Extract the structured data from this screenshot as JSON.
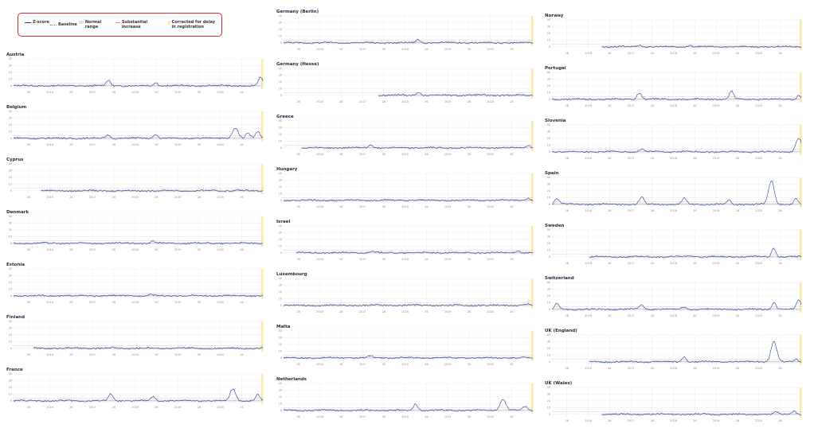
{
  "legend": {
    "zscore": "Z-score",
    "baseline": "Baseline",
    "normal": "Normal range",
    "substantial": "Substantial increase",
    "corrected": "Corrected for delay in registration"
  },
  "colors": {
    "line": "#1d3c9c",
    "normal": "#e2e2e2",
    "substantial": "#e88888",
    "corrected": "#fbeaa0",
    "grid": "#e6e6e6"
  },
  "chart_data": {
    "type": "line",
    "y_ticks": [
      0,
      10,
      20,
      30,
      40
    ],
    "ylim": [
      -5,
      40
    ],
    "x_ticks": [
      "26",
      "2016",
      "26",
      "2017",
      "26",
      "2018",
      "26",
      "2019",
      "26",
      "2020",
      "26"
    ],
    "legend_position": "top-left",
    "grid": true,
    "panels": [
      {
        "title": "Austria",
        "start": 0.0,
        "peaks": [
          [
            0.38,
            8
          ],
          [
            0.57,
            5
          ],
          [
            0.99,
            12
          ]
        ]
      },
      {
        "title": "Belgium",
        "start": 0.0,
        "peaks": [
          [
            0.38,
            5
          ],
          [
            0.57,
            6
          ],
          [
            0.89,
            16
          ],
          [
            0.94,
            8
          ],
          [
            0.98,
            10
          ]
        ]
      },
      {
        "title": "Cyprus",
        "start": 0.11,
        "peaks": [
          [
            0.9,
            1
          ]
        ]
      },
      {
        "title": "Denmark",
        "start": 0.0,
        "peaks": [
          [
            0.56,
            3
          ]
        ]
      },
      {
        "title": "Estonia",
        "start": 0.0,
        "peaks": [
          [
            0.55,
            2
          ]
        ]
      },
      {
        "title": "Finland",
        "start": 0.08,
        "peaks": [
          [
            0.4,
            1
          ]
        ]
      },
      {
        "title": "France",
        "start": 0.0,
        "peaks": [
          [
            0.39,
            10
          ],
          [
            0.56,
            6
          ],
          [
            0.88,
            18
          ],
          [
            0.98,
            9
          ]
        ]
      },
      {
        "title": "Germany (Berlin)",
        "start": 0.0,
        "peaks": [
          [
            0.54,
            5
          ]
        ]
      },
      {
        "title": "Germany (Hesse)",
        "start": 0.38,
        "peaks": [
          [
            0.54,
            5
          ]
        ]
      },
      {
        "title": "Greece",
        "start": 0.07,
        "peaks": [
          [
            0.35,
            5
          ],
          [
            0.98,
            4
          ]
        ]
      },
      {
        "title": "Hungary",
        "start": 0.0,
        "peaks": [
          [
            0.98,
            3
          ]
        ]
      },
      {
        "title": "Israel",
        "start": 0.05,
        "peaks": [
          [
            0.35,
            3
          ],
          [
            0.94,
            4
          ]
        ]
      },
      {
        "title": "Luxembourg",
        "start": 0.0,
        "peaks": [
          [
            0.98,
            2
          ]
        ]
      },
      {
        "title": "Malta",
        "start": 0.0,
        "peaks": [
          [
            0.35,
            3
          ]
        ]
      },
      {
        "title": "Netherlands",
        "start": 0.0,
        "peaks": [
          [
            0.53,
            10
          ],
          [
            0.88,
            17
          ],
          [
            0.97,
            6
          ]
        ]
      },
      {
        "title": "Norway",
        "start": 0.2,
        "peaks": [
          [
            0.35,
            3
          ],
          [
            0.55,
            2
          ]
        ]
      },
      {
        "title": "Portugal",
        "start": 0.0,
        "peaks": [
          [
            0.35,
            10
          ],
          [
            0.72,
            12
          ],
          [
            0.99,
            6
          ]
        ]
      },
      {
        "title": "Slovenia",
        "start": 0.0,
        "peaks": [
          [
            0.36,
            4
          ],
          [
            0.99,
            20
          ]
        ]
      },
      {
        "title": "Spain",
        "start": 0.0,
        "peaks": [
          [
            0.02,
            9
          ],
          [
            0.36,
            11
          ],
          [
            0.53,
            9
          ],
          [
            0.71,
            6
          ],
          [
            0.88,
            35
          ],
          [
            0.98,
            8
          ]
        ]
      },
      {
        "title": "Sweden",
        "start": 0.15,
        "peaks": [
          [
            0.55,
            2
          ],
          [
            0.89,
            13
          ]
        ]
      },
      {
        "title": "Switzerland",
        "start": 0.0,
        "peaks": [
          [
            0.02,
            8
          ],
          [
            0.36,
            7
          ],
          [
            0.53,
            4
          ],
          [
            0.89,
            10
          ],
          [
            0.99,
            15
          ]
        ]
      },
      {
        "title": "UK (England)",
        "start": 0.15,
        "peaks": [
          [
            0.53,
            8
          ],
          [
            0.89,
            31
          ],
          [
            0.98,
            4
          ]
        ]
      },
      {
        "title": "UK (Wales)",
        "start": 0.2,
        "peaks": [
          [
            0.9,
            3
          ],
          [
            0.97,
            5
          ]
        ]
      }
    ]
  }
}
